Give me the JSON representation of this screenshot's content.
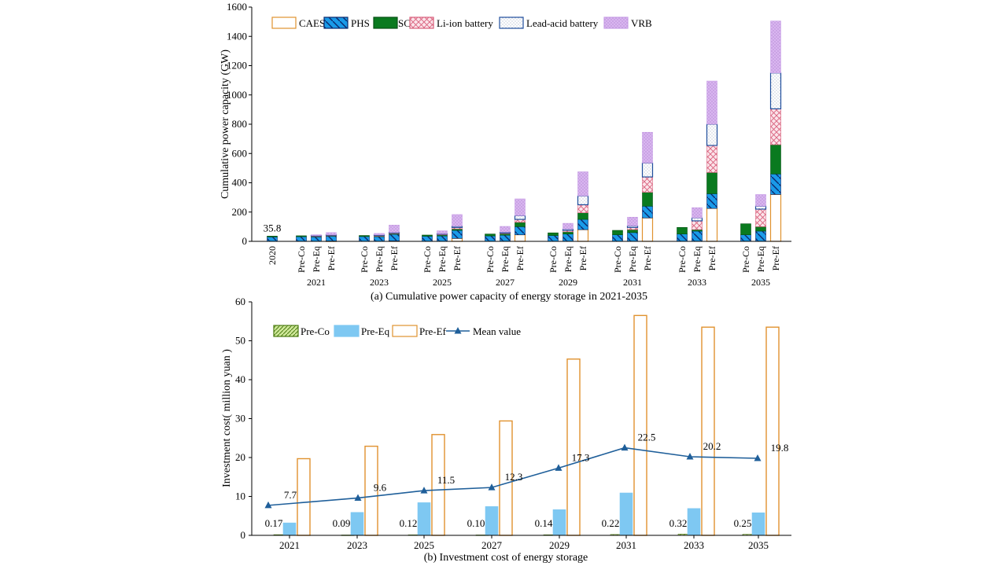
{
  "colors": {
    "caes": "#e0922f",
    "phs": "#1a9ae8",
    "sc": "#0a7a1f",
    "li_ion": "#d9607c",
    "lead_acid": "#1f4e9c",
    "vrb": "#c9a0e6",
    "pre_eq_bar": "#7ec8f2",
    "pre_ef_bar": "#e0922f",
    "pre_co_bar": "#9ecf4a",
    "mean_line": "#1f5f9a"
  },
  "chart_data": [
    {
      "type": "bar",
      "stacked": true,
      "title": "(a) Cumulative power capacity of energy storage in 2021-2035",
      "ylabel": "Cumulative power capacity (GW)",
      "ylim": [
        0,
        1600
      ],
      "yticks": [
        "0",
        "200",
        "400",
        "600",
        "800",
        "1000",
        "1200",
        "1400",
        "1600"
      ],
      "legend_position": "top-left",
      "base_year": {
        "label": "2020",
        "value_label": "35.8"
      },
      "groups": [
        "2021",
        "2023",
        "2025",
        "2027",
        "2029",
        "2031",
        "2033",
        "2035"
      ],
      "scenarios": [
        "Pre-Co",
        "Pre-Eq",
        "Pre-Ef"
      ],
      "series": [
        {
          "name": "CAES",
          "key": "caes"
        },
        {
          "name": "PHS",
          "key": "phs"
        },
        {
          "name": "SC",
          "key": "sc"
        },
        {
          "name": "Li-ion battery",
          "key": "li_ion"
        },
        {
          "name": "Lead-acid battery",
          "key": "lead_acid"
        },
        {
          "name": "VRB",
          "key": "vrb"
        }
      ],
      "bars": [
        {
          "group": "2020",
          "scenario": "2020",
          "values": [
            0,
            30,
            5.8,
            0,
            0,
            0
          ]
        },
        {
          "group": "2021",
          "scenario": "Pre-Co",
          "values": [
            0,
            32,
            6,
            0,
            0,
            0
          ]
        },
        {
          "group": "2021",
          "scenario": "Pre-Eq",
          "values": [
            0,
            30,
            3,
            5,
            2,
            5
          ]
        },
        {
          "group": "2021",
          "scenario": "Pre-Ef",
          "values": [
            2,
            33,
            3,
            5,
            2,
            15
          ]
        },
        {
          "group": "2023",
          "scenario": "Pre-Co",
          "values": [
            0,
            33,
            7,
            0,
            0,
            0
          ]
        },
        {
          "group": "2023",
          "scenario": "Pre-Eq",
          "values": [
            0,
            32,
            4,
            5,
            3,
            10
          ]
        },
        {
          "group": "2023",
          "scenario": "Pre-Ef",
          "values": [
            3,
            45,
            5,
            5,
            3,
            50
          ]
        },
        {
          "group": "2025",
          "scenario": "Pre-Co",
          "values": [
            0,
            35,
            8,
            0,
            0,
            0
          ]
        },
        {
          "group": "2025",
          "scenario": "Pre-Eq",
          "values": [
            0,
            37,
            7,
            5,
            3,
            20
          ]
        },
        {
          "group": "2025",
          "scenario": "Pre-Ef",
          "values": [
            20,
            55,
            10,
            10,
            8,
            80
          ]
        },
        {
          "group": "2027",
          "scenario": "Pre-Co",
          "values": [
            0,
            37,
            13,
            0,
            0,
            0
          ]
        },
        {
          "group": "2027",
          "scenario": "Pre-Eq",
          "values": [
            0,
            42,
            10,
            5,
            5,
            40
          ]
        },
        {
          "group": "2027",
          "scenario": "Pre-Ef",
          "values": [
            45,
            55,
            30,
            20,
            25,
            115
          ]
        },
        {
          "group": "2029",
          "scenario": "Pre-Co",
          "values": [
            0,
            40,
            18,
            0,
            0,
            0
          ]
        },
        {
          "group": "2029",
          "scenario": "Pre-Eq",
          "values": [
            0,
            50,
            15,
            10,
            8,
            40
          ]
        },
        {
          "group": "2029",
          "scenario": "Pre-Ef",
          "values": [
            80,
            70,
            45,
            55,
            60,
            165
          ]
        },
        {
          "group": "2031",
          "scenario": "Pre-Co",
          "values": [
            0,
            45,
            30,
            0,
            0,
            0
          ]
        },
        {
          "group": "2031",
          "scenario": "Pre-Eq",
          "values": [
            0,
            60,
            20,
            15,
            10,
            60
          ]
        },
        {
          "group": "2031",
          "scenario": "Pre-Ef",
          "values": [
            160,
            80,
            95,
            105,
            95,
            210
          ]
        },
        {
          "group": "2033",
          "scenario": "Pre-Co",
          "values": [
            0,
            50,
            45,
            0,
            0,
            0
          ]
        },
        {
          "group": "2033",
          "scenario": "Pre-Eq",
          "values": [
            0,
            70,
            10,
            60,
            20,
            70
          ]
        },
        {
          "group": "2033",
          "scenario": "Pre-Ef",
          "values": [
            225,
            100,
            145,
            185,
            145,
            295
          ]
        },
        {
          "group": "2035",
          "scenario": "Pre-Co",
          "values": [
            0,
            45,
            75,
            0,
            0,
            0
          ]
        },
        {
          "group": "2035",
          "scenario": "Pre-Eq",
          "values": [
            0,
            70,
            30,
            120,
            20,
            80
          ]
        },
        {
          "group": "2035",
          "scenario": "Pre-Ef",
          "values": [
            320,
            140,
            200,
            245,
            245,
            355
          ]
        }
      ]
    },
    {
      "type": "bar",
      "title": "(b) Investment cost of energy storage",
      "ylabel": "Investment cost( million yuan )",
      "ylim": [
        0,
        60
      ],
      "yticks": [
        "0",
        "10",
        "20",
        "30",
        "40",
        "50",
        "60"
      ],
      "legend_position": "top-left",
      "categories": [
        "2021",
        "2023",
        "2025",
        "2027",
        "2029",
        "2031",
        "2033",
        "2035"
      ],
      "series": [
        {
          "name": "Pre-Co",
          "key": "pre_co_bar",
          "values": [
            0.17,
            0.09,
            0.12,
            0.1,
            0.14,
            0.22,
            0.32,
            0.25
          ],
          "labels": [
            "0.17",
            "0.09",
            "0.12",
            "0.10",
            "0.14",
            "0.22",
            "0.32",
            "0.25"
          ]
        },
        {
          "name": "Pre-Eq",
          "key": "pre_eq_bar",
          "values": [
            3.2,
            5.9,
            8.4,
            7.4,
            6.6,
            10.9,
            6.9,
            5.8
          ]
        },
        {
          "name": "Pre-Ef",
          "key": "pre_ef_bar",
          "values": [
            19.7,
            22.9,
            25.9,
            29.4,
            45.3,
            56.5,
            53.5,
            53.5
          ]
        }
      ],
      "line": {
        "name": "Mean value",
        "values": [
          7.7,
          9.6,
          11.5,
          12.3,
          17.3,
          22.5,
          20.2,
          19.8
        ],
        "labels": [
          "7.7",
          "9.6",
          "11.5",
          "12.3",
          "17.3",
          "22.5",
          "20.2",
          "19.8"
        ]
      }
    }
  ]
}
